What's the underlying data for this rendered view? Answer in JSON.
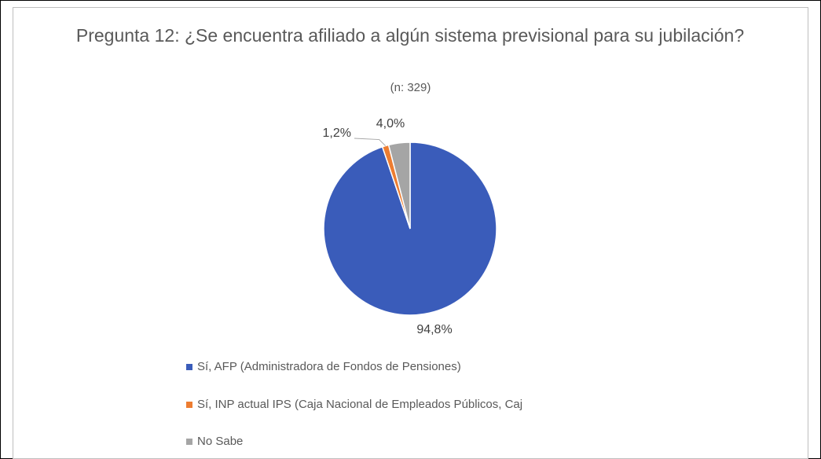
{
  "chart_data": {
    "type": "pie",
    "title": "Pregunta 12: ¿Se encuentra afiliado a algún sistema previsional para su jubilación?",
    "subtitle": "(n: 329)",
    "categories": [
      "Sí, AFP (Administradora de Fondos de Pensiones)",
      "Sí, INP actual IPS (Caja Nacional de Empleados Públicos, Caj",
      "No Sabe"
    ],
    "values": [
      94.8,
      1.2,
      4.0
    ],
    "value_labels": [
      "94,8%",
      "1,2%",
      "4,0%"
    ],
    "colors": [
      "#3a5cba",
      "#ed7d31",
      "#a5a5a5"
    ],
    "legend": "bottom"
  }
}
